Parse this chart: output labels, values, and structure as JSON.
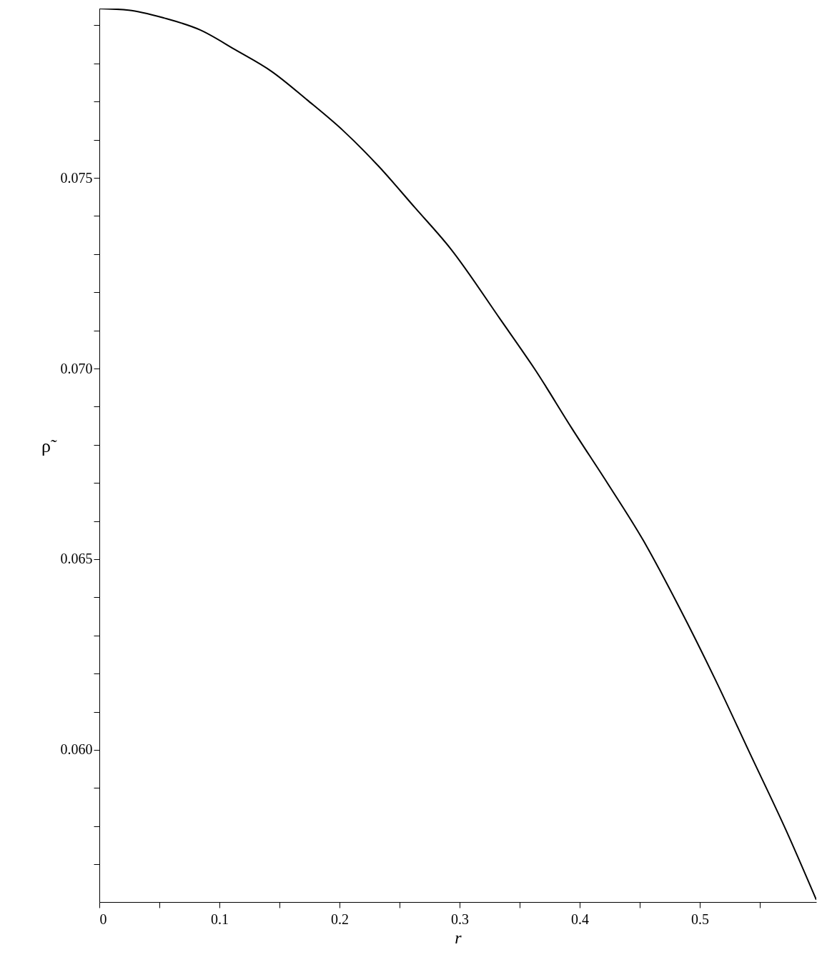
{
  "chart_data": {
    "type": "line",
    "xlabel": "r",
    "ylabel": "ρ̃",
    "color": "#000000",
    "grid": false,
    "marker": "none",
    "line_style": "solid",
    "x": [
      0,
      0.0244,
      0.0542,
      0.0839,
      0.1137,
      0.1435,
      0.1732,
      0.203,
      0.2327,
      0.2625,
      0.2923,
      0.3339,
      0.3637,
      0.3935,
      0.4232,
      0.453,
      0.4827,
      0.5125,
      0.5423,
      0.572,
      0.597
    ],
    "values": [
      0.07944,
      0.0794,
      0.07919,
      0.07888,
      0.07835,
      0.07779,
      0.07704,
      0.07624,
      0.0753,
      0.07423,
      0.07315,
      0.07129,
      0.06993,
      0.06843,
      0.06699,
      0.06549,
      0.06375,
      0.06187,
      0.05987,
      0.05788,
      0.05607
    ],
    "xlim": [
      0,
      0.597
    ],
    "ylim": [
      0.05601,
      0.07944
    ],
    "xticks": [
      0,
      {
        "value": 0.05,
        "label": null
      },
      0.1,
      {
        "value": 0.15,
        "label": null
      },
      0.2,
      {
        "value": 0.25,
        "label": null
      },
      0.3,
      {
        "value": 0.35,
        "label": null
      },
      0.4,
      {
        "value": 0.45,
        "label": null
      },
      0.5,
      {
        "value": 0.55,
        "label": null
      }
    ],
    "yticks": [
      {
        "value": 0.057,
        "label": null
      },
      {
        "value": 0.058,
        "label": null
      },
      {
        "value": 0.059,
        "label": null
      },
      {
        "value": 0.06,
        "label": "0.060"
      },
      {
        "value": 0.061,
        "label": null
      },
      {
        "value": 0.062,
        "label": null
      },
      {
        "value": 0.063,
        "label": null
      },
      {
        "value": 0.064,
        "label": null
      },
      {
        "value": 0.065,
        "label": "0.065"
      },
      {
        "value": 0.066,
        "label": null
      },
      {
        "value": 0.067,
        "label": null
      },
      {
        "value": 0.068,
        "label": null
      },
      {
        "value": 0.069,
        "label": null
      },
      {
        "value": 0.07,
        "label": "0.070"
      },
      {
        "value": 0.071,
        "label": null
      },
      {
        "value": 0.072,
        "label": null
      },
      {
        "value": 0.073,
        "label": null
      },
      {
        "value": 0.074,
        "label": null
      },
      {
        "value": 0.075,
        "label": "0.075"
      },
      {
        "value": 0.076,
        "label": null
      },
      {
        "value": 0.077,
        "label": null
      },
      {
        "value": 0.078,
        "label": null
      },
      {
        "value": 0.079,
        "label": null
      }
    ]
  }
}
